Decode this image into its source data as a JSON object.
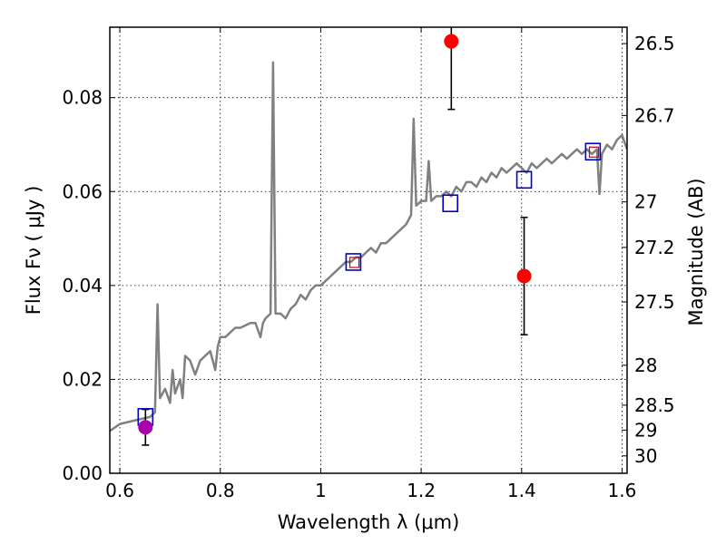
{
  "chart_data": {
    "type": "line",
    "xlabel": "Wavelength  λ (μm)",
    "ylabel": "Flux  Fν  ( μJy )",
    "ylabel_right": "Magnitude (AB)",
    "xlim": [
      0.58,
      1.61
    ],
    "ylim": [
      0.0,
      0.095
    ],
    "grid": true,
    "x_ticks": [
      0.6,
      0.8,
      1.0,
      1.2,
      1.4,
      1.6
    ],
    "x_tick_labels": [
      "0.6",
      "0.8",
      "1",
      "1.2",
      "1.4",
      "1.6"
    ],
    "y_ticks": [
      0.0,
      0.02,
      0.04,
      0.06,
      0.08
    ],
    "y_tick_labels": [
      "0.00",
      "0.02",
      "0.04",
      "0.06",
      "0.08"
    ],
    "right_ticks": [
      {
        "label": "26.5",
        "flux": 0.0915
      },
      {
        "label": "26.7",
        "flux": 0.0762
      },
      {
        "label": "27",
        "flux": 0.0578
      },
      {
        "label": "27.2",
        "flux": 0.0481
      },
      {
        "label": "27.5",
        "flux": 0.0365
      },
      {
        "label": "28",
        "flux": 0.023
      },
      {
        "label": "28.5",
        "flux": 0.0145
      },
      {
        "label": "29",
        "flux": 0.0092
      },
      {
        "label": "30",
        "flux": 0.0037
      }
    ],
    "series": [
      {
        "kind": "line",
        "color": "#808080",
        "x": [
          0.58,
          0.6,
          0.62,
          0.64,
          0.66,
          0.67,
          0.675,
          0.68,
          0.69,
          0.7,
          0.705,
          0.71,
          0.72,
          0.725,
          0.73,
          0.74,
          0.75,
          0.76,
          0.77,
          0.78,
          0.79,
          0.795,
          0.8,
          0.81,
          0.82,
          0.83,
          0.84,
          0.85,
          0.86,
          0.87,
          0.88,
          0.885,
          0.89,
          0.9,
          0.905,
          0.91,
          0.92,
          0.93,
          0.94,
          0.95,
          0.96,
          0.97,
          0.98,
          0.99,
          1.0,
          1.01,
          1.02,
          1.03,
          1.04,
          1.05,
          1.06,
          1.07,
          1.08,
          1.09,
          1.1,
          1.11,
          1.12,
          1.13,
          1.14,
          1.15,
          1.16,
          1.17,
          1.18,
          1.185,
          1.19,
          1.2,
          1.21,
          1.215,
          1.22,
          1.23,
          1.24,
          1.25,
          1.26,
          1.27,
          1.28,
          1.29,
          1.3,
          1.31,
          1.32,
          1.33,
          1.34,
          1.35,
          1.36,
          1.37,
          1.38,
          1.39,
          1.4,
          1.41,
          1.42,
          1.43,
          1.44,
          1.45,
          1.46,
          1.47,
          1.48,
          1.49,
          1.5,
          1.51,
          1.52,
          1.53,
          1.54,
          1.55,
          1.555,
          1.56,
          1.57,
          1.58,
          1.59,
          1.6,
          1.61
        ],
        "y": [
          0.009,
          0.0105,
          0.011,
          0.0115,
          0.012,
          0.013,
          0.036,
          0.016,
          0.018,
          0.015,
          0.022,
          0.017,
          0.02,
          0.016,
          0.025,
          0.024,
          0.021,
          0.024,
          0.025,
          0.026,
          0.022,
          0.027,
          0.029,
          0.029,
          0.03,
          0.031,
          0.031,
          0.0315,
          0.032,
          0.032,
          0.029,
          0.032,
          0.033,
          0.034,
          0.0875,
          0.034,
          0.034,
          0.033,
          0.035,
          0.036,
          0.038,
          0.037,
          0.039,
          0.04,
          0.04,
          0.041,
          0.042,
          0.043,
          0.044,
          0.045,
          0.045,
          0.046,
          0.046,
          0.047,
          0.048,
          0.047,
          0.049,
          0.049,
          0.05,
          0.051,
          0.052,
          0.053,
          0.055,
          0.0755,
          0.057,
          0.058,
          0.058,
          0.0665,
          0.058,
          0.059,
          0.059,
          0.06,
          0.059,
          0.061,
          0.06,
          0.062,
          0.062,
          0.061,
          0.063,
          0.062,
          0.064,
          0.063,
          0.065,
          0.064,
          0.065,
          0.066,
          0.065,
          0.064,
          0.066,
          0.065,
          0.066,
          0.067,
          0.066,
          0.067,
          0.068,
          0.067,
          0.068,
          0.069,
          0.068,
          0.069,
          0.068,
          0.069,
          0.0595,
          0.068,
          0.07,
          0.069,
          0.071,
          0.072,
          0.069
        ]
      },
      {
        "kind": "open-squares",
        "color": "#0000cc",
        "x": [
          0.651,
          1.065,
          1.258,
          1.405,
          1.542
        ],
        "y": [
          0.012,
          0.045,
          0.0575,
          0.0625,
          0.0685
        ]
      },
      {
        "kind": "small-open-squares",
        "color": "#cc0000",
        "x": [
          1.067,
          1.544
        ],
        "y": [
          0.0448,
          0.0683
        ]
      },
      {
        "kind": "points-with-errorbars",
        "color": "#ff0000",
        "x": [
          1.26,
          1.405
        ],
        "y": [
          0.092,
          0.042
        ],
        "err": [
          0.0145,
          0.0125
        ]
      },
      {
        "kind": "points-with-errorbars",
        "color": "#aa00aa",
        "x": [
          0.651
        ],
        "y": [
          0.0098
        ],
        "err": [
          0.0038
        ]
      }
    ]
  }
}
